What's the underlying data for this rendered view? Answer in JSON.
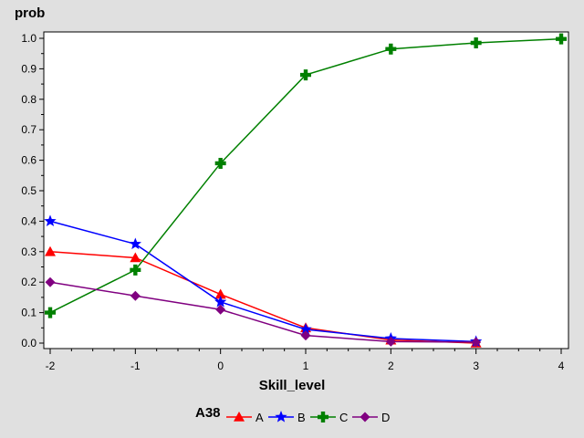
{
  "chart_data": {
    "type": "line",
    "ylabel": "prob",
    "xlabel": "Skill_level",
    "legend_title": "A38",
    "xlim": [
      -2,
      4
    ],
    "ylim": [
      0,
      1.0
    ],
    "xticks": [
      "-2",
      "-1",
      "0",
      "1",
      "2",
      "3",
      "4"
    ],
    "yticks": [
      "0.0",
      "0.1",
      "0.2",
      "0.3",
      "0.4",
      "0.5",
      "0.6",
      "0.7",
      "0.8",
      "0.9",
      "1.0"
    ],
    "grid": false,
    "legend_position": "bottom",
    "series": [
      {
        "name": "A",
        "color": "#ff0000",
        "marker": "triangle",
        "x": [
          -2,
          -1,
          0,
          1,
          2,
          3
        ],
        "y": [
          0.3,
          0.28,
          0.16,
          0.05,
          0.01,
          0.0
        ]
      },
      {
        "name": "B",
        "color": "#0000ff",
        "marker": "star",
        "x": [
          -2,
          -1,
          0,
          1,
          2,
          3
        ],
        "y": [
          0.4,
          0.325,
          0.135,
          0.045,
          0.015,
          0.005
        ]
      },
      {
        "name": "C",
        "color": "#008000",
        "marker": "plus",
        "x": [
          -2,
          -1,
          0,
          1,
          2,
          3,
          4
        ],
        "y": [
          0.1,
          0.24,
          0.59,
          0.88,
          0.965,
          0.985,
          0.998
        ]
      },
      {
        "name": "D",
        "color": "#800080",
        "marker": "diamond",
        "x": [
          -2,
          -1,
          0,
          1,
          2,
          3
        ],
        "y": [
          0.2,
          0.155,
          0.11,
          0.025,
          0.005,
          0.003
        ]
      }
    ]
  }
}
